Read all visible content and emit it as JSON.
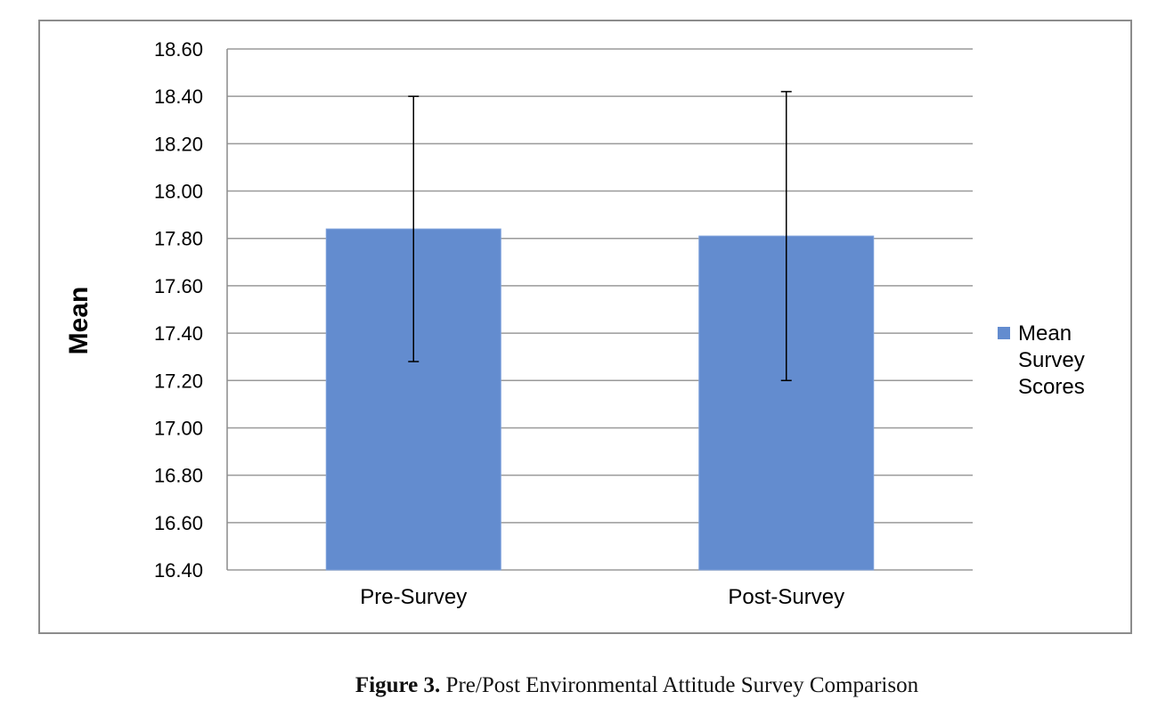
{
  "chart_data": {
    "type": "bar",
    "title": "",
    "xlabel": "",
    "ylabel": "Mean",
    "categories": [
      "Pre-Survey",
      "Post-Survey"
    ],
    "series": [
      {
        "name": "Mean Survey Scores",
        "values": [
          17.84,
          17.81
        ],
        "error_low": [
          17.28,
          17.2
        ],
        "error_high": [
          18.4,
          18.42
        ],
        "color": "#638ccf"
      }
    ],
    "ylim": [
      16.4,
      18.6
    ],
    "yticks": [
      "16.40",
      "16.60",
      "16.80",
      "17.00",
      "17.20",
      "17.40",
      "17.60",
      "17.80",
      "18.00",
      "18.20",
      "18.40",
      "18.60"
    ],
    "grid": true,
    "legend": {
      "position": "right",
      "lines": [
        "Mean",
        "Survey",
        "Scores"
      ]
    }
  },
  "caption": {
    "label": "Figure 3.",
    "text": " Pre/Post Environmental Attitude Survey Comparison"
  }
}
